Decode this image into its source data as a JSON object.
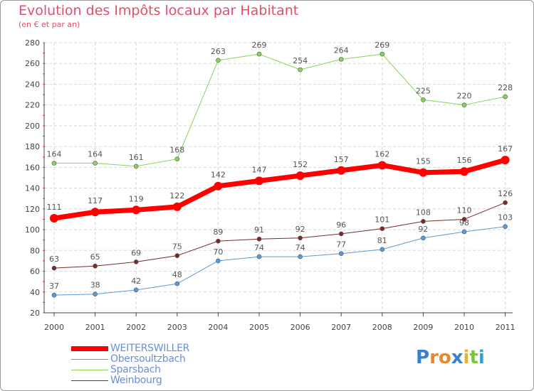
{
  "title": "Evolution des Impôts locaux par Habitant",
  "subtitle": "(en € et par an)",
  "logo": {
    "letters": [
      "P",
      "r",
      "o",
      "x",
      "i",
      "t",
      "i"
    ],
    "colors": [
      "#3a7fd0",
      "#e8892c",
      "#e8892c",
      "#3a7fd0",
      "#e8b32c",
      "#7cc43a",
      "#3a9fd0"
    ]
  },
  "chart_data": {
    "type": "line",
    "title": "Evolution des Impôts locaux par Habitant",
    "subtitle": "(en € et par an)",
    "xlabel": "",
    "ylabel": "",
    "ylim": [
      20,
      280
    ],
    "yticks": [
      20,
      40,
      60,
      80,
      100,
      120,
      140,
      160,
      180,
      200,
      220,
      240,
      260,
      280
    ],
    "grid": true,
    "legend_position": "bottom-left",
    "x": [
      "2000",
      "2001",
      "2002",
      "2003",
      "2004",
      "2005",
      "2006",
      "2007",
      "2008",
      "2009",
      "2010",
      "2011"
    ],
    "series": [
      {
        "name": "Sparsbach",
        "color": "#88d35a",
        "stroke": 1,
        "point": 3,
        "values": [
          164,
          164,
          161,
          168,
          263,
          269,
          254,
          264,
          269,
          225,
          220,
          228
        ]
      },
      {
        "name": "Weinbourg",
        "color": "#7a2a2a",
        "stroke": 1,
        "point": 3,
        "values": [
          63,
          65,
          69,
          75,
          89,
          91,
          92,
          96,
          101,
          108,
          110,
          126
        ]
      },
      {
        "name": "Obersoultzbach",
        "color": "#5b9bd5",
        "stroke": 1,
        "point": 3,
        "values": [
          37,
          38,
          42,
          48,
          70,
          74,
          74,
          77,
          81,
          92,
          98,
          103
        ]
      },
      {
        "name": "WEITERSWILLER",
        "color": "#ff0000",
        "stroke": 7,
        "point": 6,
        "values": [
          111,
          117,
          119,
          122,
          142,
          147,
          152,
          157,
          162,
          155,
          156,
          167
        ]
      }
    ],
    "legend": [
      "WEITERSWILLER",
      "Obersoultzbach",
      "Sparsbach",
      "Weinbourg"
    ]
  }
}
